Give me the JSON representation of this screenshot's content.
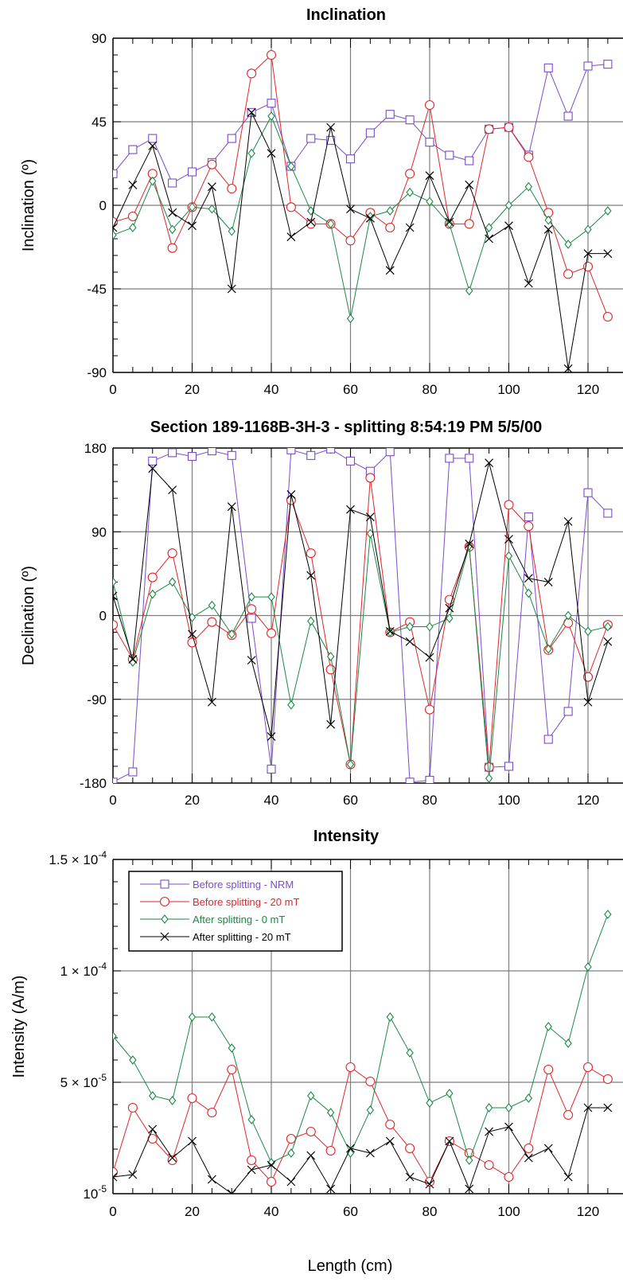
{
  "figure": {
    "xlabel": "Length (cm)"
  },
  "colors": {
    "nrm": "#7a4ccc",
    "before20": "#e0262a",
    "after0": "#1a8a45",
    "after20": "#000000"
  },
  "chart_data": [
    {
      "type": "line",
      "title": "Inclination",
      "ylabel": "Inclination (º)",
      "xlim": [
        0,
        125
      ],
      "ylim": [
        -90,
        90
      ],
      "xticks": [
        "0",
        "20",
        "40",
        "60",
        "80",
        "100",
        "120"
      ],
      "yticks": [
        "90",
        "45",
        "0",
        "-45",
        "-90"
      ],
      "grid": true,
      "series": [
        {
          "name": "Before splitting - NRM",
          "color": "#7a4ccc",
          "marker": "square",
          "x": [
            0,
            5,
            10,
            15,
            20,
            25,
            30,
            35,
            40,
            45,
            50,
            55,
            60,
            65,
            70,
            75,
            80,
            85,
            90,
            95,
            100,
            105,
            110,
            115,
            120,
            125
          ],
          "y": [
            17,
            30,
            36,
            12,
            18,
            23,
            36,
            50,
            55,
            21,
            36,
            35,
            25,
            39,
            49,
            46,
            34,
            27,
            24,
            41,
            42,
            27,
            74,
            48,
            75,
            76
          ]
        },
        {
          "name": "Before splitting - 20 mT",
          "color": "#e0262a",
          "marker": "circle",
          "x": [
            0,
            5,
            10,
            15,
            20,
            25,
            30,
            35,
            40,
            45,
            50,
            55,
            60,
            65,
            70,
            75,
            80,
            85,
            90,
            95,
            100,
            105,
            110,
            115,
            120,
            125
          ],
          "y": [
            -9,
            -6,
            17,
            -23,
            -1,
            22,
            9,
            71,
            81,
            -1,
            -10,
            -10,
            -19,
            -4,
            -12,
            17,
            54,
            -10,
            -10,
            41,
            42,
            26,
            -4,
            -37,
            -33,
            -60
          ]
        },
        {
          "name": "After splitting - 0 mT",
          "color": "#1a8a45",
          "marker": "diamond",
          "x": [
            0,
            5,
            10,
            15,
            20,
            25,
            30,
            35,
            40,
            45,
            50,
            55,
            60,
            65,
            70,
            75,
            80,
            85,
            90,
            95,
            100,
            105,
            110,
            115,
            120,
            125
          ],
          "y": [
            -16,
            -12,
            13,
            -13,
            -1,
            -2,
            -14,
            28,
            48,
            21,
            -3,
            -10,
            -61,
            -6,
            -3,
            7,
            2,
            -10,
            -46,
            -12,
            0,
            10,
            -8,
            -21,
            -13,
            -3
          ]
        },
        {
          "name": "After splitting - 20 mT",
          "color": "#000000",
          "marker": "x",
          "x": [
            0,
            5,
            10,
            15,
            20,
            25,
            30,
            35,
            40,
            45,
            50,
            55,
            60,
            65,
            70,
            75,
            80,
            85,
            90,
            95,
            100,
            105,
            110,
            115,
            120,
            125
          ],
          "y": [
            -12,
            11,
            32,
            -4,
            -11,
            10,
            -45,
            50,
            28,
            -17,
            -9,
            42,
            -2,
            -7,
            -35,
            -12,
            16,
            -9,
            11,
            -18,
            -11,
            -42,
            -13,
            -88,
            -26,
            -26
          ]
        }
      ]
    },
    {
      "type": "line",
      "title": "Section 189-1168B-3H-3 - splitting  8:54:19 PM 5/5/00",
      "ylabel": "Declination (º)",
      "xlim": [
        0,
        125
      ],
      "ylim": [
        -180,
        180
      ],
      "xticks": [
        "0",
        "20",
        "40",
        "60",
        "80",
        "100",
        "120"
      ],
      "yticks": [
        "180",
        "90",
        "0",
        "-90",
        "-180"
      ],
      "grid": true,
      "series": [
        {
          "name": "Before splitting - NRM",
          "color": "#7a4ccc",
          "marker": "square",
          "x": [
            0,
            5,
            10,
            15,
            20,
            25,
            30,
            35,
            40,
            45,
            50,
            55,
            60,
            65,
            70,
            75,
            80,
            85,
            90,
            95,
            100,
            105,
            110,
            115,
            120,
            125
          ],
          "y": [
            -179,
            -168,
            166,
            175,
            171,
            177,
            172,
            -3,
            -165,
            178,
            172,
            179,
            166,
            155,
            176,
            -179,
            -177,
            169,
            169,
            -163,
            -162,
            106,
            -133,
            -103,
            132,
            110
          ]
        },
        {
          "name": "Before splitting - 20 mT",
          "color": "#e0262a",
          "marker": "circle",
          "x": [
            0,
            5,
            10,
            15,
            20,
            25,
            30,
            35,
            40,
            45,
            50,
            55,
            60,
            65,
            70,
            75,
            80,
            85,
            90,
            95,
            100,
            105,
            110,
            115,
            120,
            125
          ],
          "y": [
            -10,
            -47,
            41,
            67,
            -29,
            -7,
            -21,
            7,
            -19,
            124,
            67,
            -58,
            -160,
            148,
            -18,
            -7,
            -101,
            17,
            74,
            -163,
            119,
            96,
            -37,
            -8,
            -66,
            -10
          ]
        },
        {
          "name": "After splitting - 0 mT",
          "color": "#1a8a45",
          "marker": "diamond",
          "x": [
            0,
            5,
            10,
            15,
            20,
            25,
            30,
            35,
            40,
            45,
            50,
            55,
            60,
            65,
            70,
            75,
            80,
            85,
            90,
            95,
            100,
            105,
            110,
            115,
            120,
            125
          ],
          "y": [
            36,
            -50,
            23,
            36,
            -2,
            11,
            -20,
            20,
            20,
            -96,
            -6,
            -44,
            -160,
            88,
            -18,
            -12,
            -12,
            -3,
            75,
            -175,
            64,
            24,
            -36,
            0,
            -17,
            -12
          ]
        },
        {
          "name": "After splitting - 20 mT",
          "color": "#000000",
          "marker": "x",
          "x": [
            0,
            5,
            10,
            15,
            20,
            25,
            30,
            35,
            40,
            45,
            50,
            55,
            60,
            65,
            70,
            75,
            80,
            85,
            90,
            95,
            100,
            105,
            110,
            115,
            120,
            125
          ],
          "y": [
            21,
            -47,
            158,
            135,
            -20,
            -93,
            117,
            -48,
            -130,
            130,
            43,
            -117,
            114,
            106,
            -17,
            -28,
            -45,
            8,
            77,
            164,
            82,
            40,
            36,
            101,
            -93,
            -28
          ]
        }
      ]
    },
    {
      "type": "line",
      "title": "Intensity",
      "ylabel": "Intensity (A/m)",
      "xlabel": "Length (cm)",
      "xlim": [
        0,
        125
      ],
      "ylim": [
        1e-05,
        0.00015
      ],
      "xticks": [
        "0",
        "20",
        "40",
        "60",
        "80",
        "100",
        "120"
      ],
      "yticks": [
        {
          "mant": "1.5 × 10",
          "exp": "-4"
        },
        {
          "mant": "1 × 10",
          "exp": "-4"
        },
        {
          "mant": "5 × 10",
          "exp": "-5"
        },
        {
          "mant": "10",
          "exp": "-5"
        }
      ],
      "grid": true,
      "legend_position": "top-left",
      "series": [
        {
          "name": "Before splitting - NRM",
          "color": "#7a4ccc",
          "marker": "square",
          "x": [],
          "y": []
        },
        {
          "name": "Before splitting - 20 mT",
          "color": "#e0262a",
          "marker": "circle",
          "x": [
            0,
            5,
            10,
            15,
            20,
            25,
            30,
            35,
            40,
            45,
            50,
            55,
            60,
            65,
            70,
            75,
            80,
            85,
            90,
            95,
            100,
            105,
            110,
            115,
            120,
            125
          ],
          "y": [
            1.9e-05,
            4.6e-05,
            3.3e-05,
            2.4e-05,
            5e-05,
            4.4e-05,
            6.2e-05,
            2.4e-05,
            1.5e-05,
            3.3e-05,
            3.6e-05,
            2.8e-05,
            6.3e-05,
            5.7e-05,
            3.9e-05,
            2.9e-05,
            1.5e-05,
            3.2e-05,
            2.7e-05,
            2.2e-05,
            1.7e-05,
            2.9e-05,
            6.2e-05,
            4.3e-05,
            6.3e-05,
            5.8e-05
          ]
        },
        {
          "name": "After splitting - 0 mT",
          "color": "#1a8a45",
          "marker": "diamond",
          "x": [
            0,
            5,
            10,
            15,
            20,
            25,
            30,
            35,
            40,
            45,
            50,
            55,
            60,
            65,
            70,
            75,
            80,
            85,
            90,
            95,
            100,
            105,
            110,
            115,
            120,
            125
          ],
          "y": [
            7.6e-05,
            6.6e-05,
            5.1e-05,
            4.9e-05,
            8.4e-05,
            8.4e-05,
            7.1e-05,
            4.1e-05,
            2.3e-05,
            2.7e-05,
            5.1e-05,
            4.4e-05,
            2.7e-05,
            4.5e-05,
            8.4e-05,
            6.9e-05,
            4.8e-05,
            5.2e-05,
            2.4e-05,
            4.6e-05,
            4.6e-05,
            5e-05,
            8e-05,
            7.3e-05,
            0.000105,
            0.000127
          ]
        },
        {
          "name": "After splitting - 20 mT",
          "color": "#000000",
          "marker": "x",
          "x": [
            0,
            5,
            10,
            15,
            20,
            25,
            30,
            35,
            40,
            45,
            50,
            55,
            60,
            65,
            70,
            75,
            80,
            85,
            90,
            95,
            100,
            105,
            110,
            115,
            120,
            125
          ],
          "y": [
            1.7e-05,
            1.8e-05,
            3.7e-05,
            2.5e-05,
            3.2e-05,
            1.6e-05,
            1e-05,
            2e-05,
            2.2e-05,
            1.5e-05,
            2.6e-05,
            1.2e-05,
            2.9e-05,
            2.7e-05,
            3.2e-05,
            1.7e-05,
            1.4e-05,
            3.2e-05,
            1.2e-05,
            3.6e-05,
            3.8e-05,
            2.5e-05,
            2.9e-05,
            1.7e-05,
            4.6e-05,
            4.6e-05
          ]
        }
      ]
    }
  ]
}
